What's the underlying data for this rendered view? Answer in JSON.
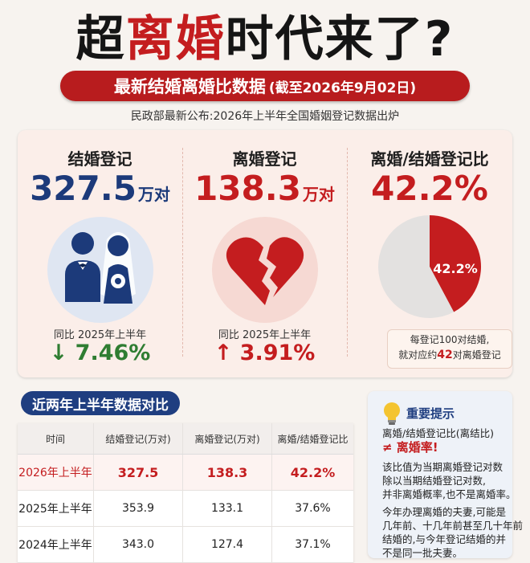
{
  "headline": {
    "part1": "超",
    "part2": "离婚",
    "part3": "时代来了?"
  },
  "subtitle": {
    "main": "最新结婚离婚比数据",
    "date": "(截至2026年9月02日)"
  },
  "source": "民政部最新公布:2026年上半年全国婚姻登记数据出炉",
  "stats": {
    "marriage": {
      "label": "结婚登记",
      "value": "327.5",
      "unit": "万对",
      "compare_label": "同比 2025年上半年",
      "compare_value": "↓ 7.46%"
    },
    "divorce": {
      "label": "离婚登记",
      "value": "138.3",
      "unit": "万对",
      "compare_label": "同比 2025年上半年",
      "compare_value": "↑ 3.91%"
    },
    "ratio": {
      "label": "离婚/结婚登记比",
      "value": "42.2%",
      "pie_label": "42.2%",
      "note_line1": "每登记100对结婚,",
      "note_pre": "就对应约",
      "note_num": "42",
      "note_post": "对离婚登记"
    }
  },
  "colors": {
    "red": "#c41d1f",
    "navy": "#1c3a7a",
    "green": "#2f7d32",
    "pie_rest": "#e3e1e0"
  },
  "table": {
    "title": "近两年上半年数据对比",
    "headers": [
      "时间",
      "结婚登记(万对)",
      "离婚登记(万对)",
      "离婚/结婚登记比"
    ],
    "rows": [
      [
        "2026年上半年",
        "327.5",
        "138.3",
        "42.2%"
      ],
      [
        "2025年上半年",
        "353.9",
        "133.1",
        "37.6%"
      ],
      [
        "2024年上半年",
        "343.0",
        "127.4",
        "37.1%"
      ]
    ]
  },
  "tip": {
    "title": "重要提示",
    "line1": "离婚/结婚登记比(离结比)",
    "line2": "≠ 离婚率!",
    "p1": [
      "该比值为当期离婚登记对数",
      "除以当期结婚登记对数,",
      "并非离婚概率,也不是离婚率。"
    ],
    "p2": [
      "今年办理离婚的夫妻,可能是",
      "几年前、十几年前甚至几十年前",
      "结婚的,与今年登记结婚的并",
      "不是同一批夫妻。"
    ]
  },
  "chart_data": [
    {
      "type": "pie",
      "title": "离婚/结婚登记比",
      "slices": [
        {
          "label": "42.2%",
          "value": 42.2,
          "color": "#c41d1f"
        },
        {
          "label": "",
          "value": 57.8,
          "color": "#e3e1e0"
        }
      ]
    },
    {
      "type": "table",
      "title": "近两年上半年数据对比",
      "columns": [
        "时间",
        "结婚登记(万对)",
        "离婚登记(万对)",
        "离婚/结婚登记比"
      ],
      "rows": [
        [
          "2026年上半年",
          327.5,
          138.3,
          "42.2%"
        ],
        [
          "2025年上半年",
          353.9,
          133.1,
          "37.6%"
        ],
        [
          "2024年上半年",
          343.0,
          127.4,
          "37.1%"
        ]
      ]
    }
  ]
}
